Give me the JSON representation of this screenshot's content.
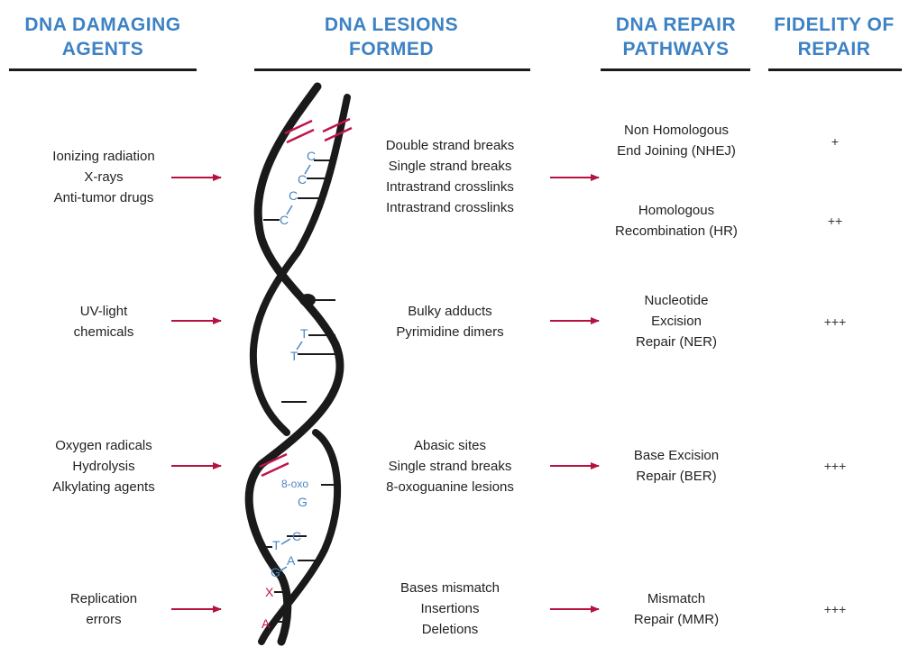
{
  "headers": {
    "agents": "DNA DAMAGING\nAGENTS",
    "lesions": "DNA LESIONS\nFORMED",
    "pathways": "DNA REPAIR\nPATHWAYS",
    "fidelity": "FIDELITY OF\nREPAIR"
  },
  "rows": [
    {
      "agents": "Ionizing radiation\nX-rays\nAnti-tumor drugs",
      "lesions": "Double strand breaks\nSingle strand breaks\nIntrastrand crosslinks\nIntrastrand crosslinks"
    },
    {
      "agents": "UV-light\nchemicals",
      "lesions": "Bulky adducts\nPyrimidine dimers"
    },
    {
      "agents": "Oxygen radicals\nHydrolysis\nAlkylating agents",
      "lesions": "Abasic sites\nSingle strand breaks\n8-oxoguanine lesions"
    },
    {
      "agents": "Replication\nerrors",
      "lesions": "Bases mismatch\nInsertions\nDeletions"
    }
  ],
  "pathways": [
    {
      "name": "Non Homologous\nEnd Joining (NHEJ)",
      "fidelity": "+"
    },
    {
      "name": "Homologous\nRecombination (HR)",
      "fidelity": "++"
    },
    {
      "name": "Nucleotide\nExcision\nRepair (NER)",
      "fidelity": "+++"
    },
    {
      "name": "Base Excision\nRepair (BER)",
      "fidelity": "+++"
    },
    {
      "name": "Mismatch\nRepair (MMR)",
      "fidelity": "+++"
    }
  ],
  "bases": {
    "crosslink1_top": "C",
    "crosslink1_bottom": "C",
    "crosslink2_top": "C",
    "crosslink2_bottom": "C",
    "dimer_top": "T",
    "dimer_bottom": "T",
    "oxo_label": "8-oxo",
    "oxo_base": "G",
    "mismatch_c": "C",
    "mismatch_t": "T",
    "mismatch_a": "A",
    "mismatch_g": "G",
    "insertion_x": "X",
    "deletion_a": "A"
  },
  "colors": {
    "header": "#3d82c4",
    "arrow": "#b5123f",
    "base_label": "#4a86c4",
    "damage_mark": "#c0154a",
    "strand": "#1a1a1a"
  }
}
